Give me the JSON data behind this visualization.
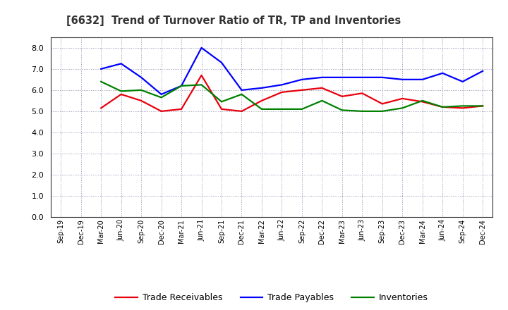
{
  "title": "[6632]  Trend of Turnover Ratio of TR, TP and Inventories",
  "x_labels": [
    "Sep-19",
    "Dec-19",
    "Mar-20",
    "Jun-20",
    "Sep-20",
    "Dec-20",
    "Mar-21",
    "Jun-21",
    "Sep-21",
    "Dec-21",
    "Mar-22",
    "Jun-22",
    "Sep-22",
    "Dec-22",
    "Mar-23",
    "Jun-23",
    "Sep-23",
    "Dec-23",
    "Mar-24",
    "Jun-24",
    "Sep-24",
    "Dec-24"
  ],
  "trade_receivables": [
    null,
    null,
    5.15,
    5.8,
    5.5,
    5.0,
    5.1,
    6.7,
    5.1,
    5.0,
    5.5,
    5.9,
    6.0,
    6.1,
    5.7,
    5.85,
    5.35,
    5.6,
    5.45,
    5.2,
    5.15,
    5.25
  ],
  "trade_payables": [
    null,
    null,
    7.0,
    7.25,
    6.6,
    5.8,
    6.2,
    8.0,
    7.3,
    6.0,
    6.1,
    6.25,
    6.5,
    6.6,
    6.6,
    6.6,
    6.6,
    6.5,
    6.5,
    6.8,
    6.4,
    6.9
  ],
  "inventories": [
    null,
    null,
    6.4,
    5.95,
    6.0,
    5.65,
    6.2,
    6.25,
    5.45,
    5.8,
    5.1,
    5.1,
    5.1,
    5.5,
    5.05,
    5.0,
    5.0,
    5.15,
    5.5,
    5.2,
    5.25,
    5.25
  ],
  "color_tr": "#e8000d",
  "color_tp": "#0000ff",
  "color_inv": "#008000",
  "ylim": [
    0.0,
    8.5
  ],
  "yticks": [
    0.0,
    1.0,
    2.0,
    3.0,
    4.0,
    5.0,
    6.0,
    7.0,
    8.0
  ],
  "legend_labels": [
    "Trade Receivables",
    "Trade Payables",
    "Inventories"
  ],
  "background_color": "#ffffff",
  "grid_color": "#8888aa"
}
